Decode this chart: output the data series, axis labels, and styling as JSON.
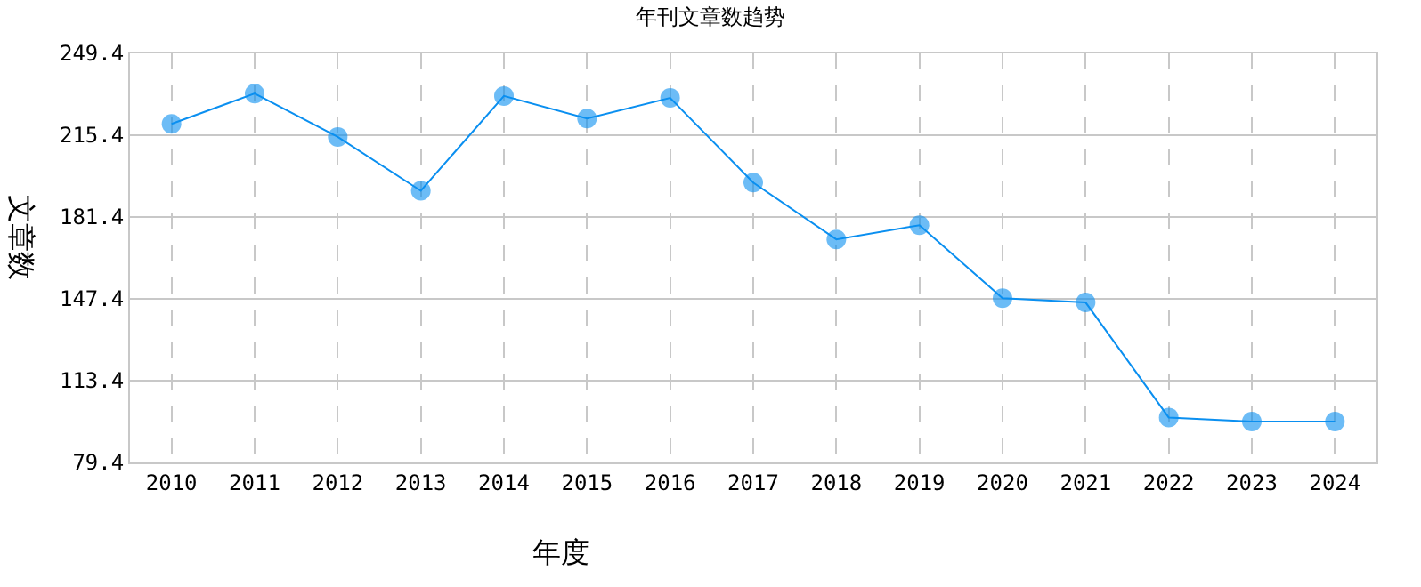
{
  "chart_data": {
    "type": "line",
    "title": "年刊文章数趋势",
    "xlabel": "年度",
    "ylabel": "文章数",
    "categories": [
      "2010",
      "2011",
      "2012",
      "2013",
      "2014",
      "2015",
      "2016",
      "2017",
      "2018",
      "2019",
      "2020",
      "2021",
      "2022",
      "2023",
      "2024"
    ],
    "series": [
      {
        "color": "#0a8ff0",
        "values": [
          220.1,
          232.7,
          214.7,
          192.3,
          231.7,
          222.3,
          230.9,
          195.7,
          172.1,
          178.0,
          147.7,
          145.9,
          98.1,
          96.4,
          96.4
        ]
      }
    ],
    "ylim": [
      79.4,
      249.4
    ],
    "yticks": [
      79.4,
      113.4,
      147.4,
      181.4,
      215.4,
      249.4
    ],
    "grid": true,
    "marker": "circle",
    "line_style": "solid"
  }
}
